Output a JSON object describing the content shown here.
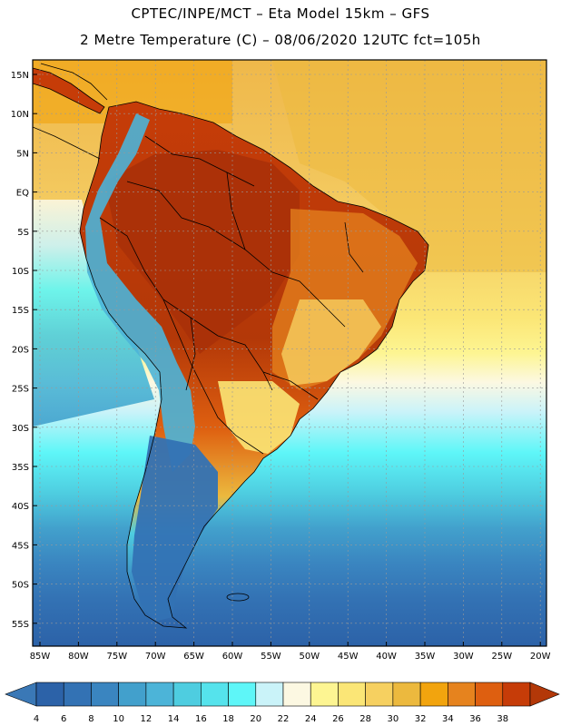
{
  "header": {
    "line1": "CPTEC/INPE/MCT  –   Eta Model 15km  –  GFS",
    "line2": "2 Metre Temperature (C)  –  08/06/2020 12UTC fct=105h"
  },
  "axes": {
    "lat_labels": [
      "15N",
      "10N",
      "5N",
      "EQ",
      "5S",
      "10S",
      "15S",
      "20S",
      "25S",
      "30S",
      "35S",
      "40S",
      "45S",
      "50S",
      "55S"
    ],
    "lon_labels": [
      "85W",
      "80W",
      "75W",
      "70W",
      "65W",
      "60W",
      "55W",
      "50W",
      "45W",
      "40W",
      "35W",
      "30W",
      "25W",
      "20W"
    ]
  },
  "colorbar": {
    "labels": [
      "4",
      "6",
      "8",
      "10",
      "12",
      "14",
      "16",
      "18",
      "20",
      "22",
      "24",
      "26",
      "28",
      "30",
      "32",
      "34",
      "36",
      "38"
    ],
    "colors": [
      "#2c62a8",
      "#3372b4",
      "#3a85c0",
      "#42a0cc",
      "#4cb4d8",
      "#4ecde0",
      "#55e3ec",
      "#5ef6f8",
      "#caf3f9",
      "#fcf8e2",
      "#fdf592",
      "#fbe676",
      "#f6d060",
      "#ecb93e",
      "#f2a40e",
      "#e6831e",
      "#de5f10",
      "#c63c08"
    ],
    "low_color": "#3a78b6",
    "high_color": "#b33808"
  },
  "map": {
    "ocean_north_color": "#f6d060",
    "ocean_south_color": "#2c62a8",
    "land_hot_color": "#a83008",
    "andes_color": "#4cb4d8",
    "patagonia_color": "#3372b4",
    "border_color": "#000000",
    "grid_color": "#bbbbbb"
  }
}
